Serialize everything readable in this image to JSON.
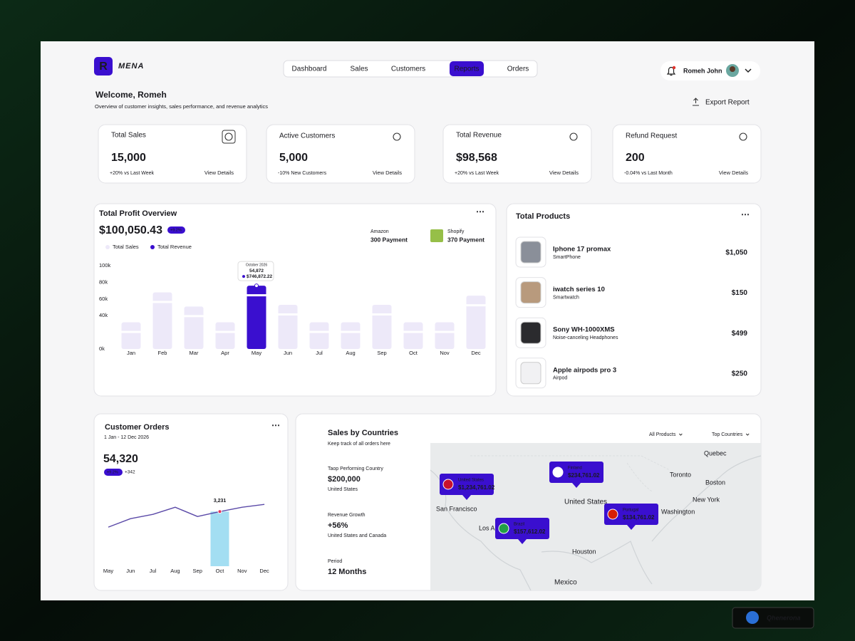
{
  "header": {
    "logo": "R",
    "brand": "MENA",
    "nav": [
      "Dashboard",
      "Sales",
      "Customers",
      "Reports",
      "Orders"
    ],
    "nav_active": 3,
    "user": "Romeh John"
  },
  "welcome": {
    "title": "Welcome, Romeh",
    "subtitle": "Overview of customer insights, sales performance, and revenue analytics",
    "export": "Export Report"
  },
  "stats": [
    {
      "label": "Total Sales",
      "value": "15,000",
      "change": "+20%",
      "change_text": "vs Last Week",
      "link": "View Details"
    },
    {
      "label": "Active Customers",
      "value": "5,000",
      "change": "-10%",
      "change_text": "New Customers",
      "link": "View Details"
    },
    {
      "label": "Total Revenue",
      "value": "$98,568",
      "change": "+20%",
      "change_text": "vs Last Week",
      "link": "View Details"
    },
    {
      "label": "Refund  Request",
      "value": "200",
      "change": "-0.04%",
      "change_text": "vs Last Month",
      "link": "View Details"
    }
  ],
  "profit": {
    "title": "Total Profit Overview",
    "total": "$100,050.43",
    "badge": "+9.2%",
    "legend": [
      "Total Sales",
      "Total Revenue"
    ],
    "payments": [
      {
        "name": "Amazon",
        "count": "300 Payment"
      },
      {
        "name": "Shopify",
        "count": "370 Payment"
      }
    ],
    "chart": {
      "type": "bar",
      "categories": [
        "Jan",
        "Feb",
        "Mar",
        "Apr",
        "May",
        "Jun",
        "Jul",
        "Aug",
        "Sep",
        "Oct",
        "Nov",
        "Dec"
      ],
      "values": [
        32000,
        68000,
        51000,
        32000,
        76000,
        53000,
        32000,
        32000,
        53000,
        32000,
        32000,
        64000
      ],
      "color": "#ede9f9",
      "highlight_color": "#3a0fcf",
      "highlight": 4,
      "ylim": [
        0,
        100000
      ],
      "yticks": [
        {
          "value": 0,
          "label": "0k"
        },
        {
          "value": 40000,
          "label": "40k"
        },
        {
          "value": 60000,
          "label": "60k"
        },
        {
          "value": 80000,
          "label": "80k"
        },
        {
          "value": 100000,
          "label": "100k"
        }
      ],
      "tooltip": {
        "title": "October 2026",
        "value": "54,872",
        "amount": "$746,872.22"
      }
    }
  },
  "products": {
    "title": "Total Products",
    "items": [
      {
        "name": "Iphone 17 promax",
        "category": "SmartPhone",
        "price": "$1,050"
      },
      {
        "name": "iwatch series 10",
        "category": "Smartwatch",
        "price": "$150"
      },
      {
        "name": "Sony WH-1000XMS",
        "category": "Noise-canceling Headphones",
        "price": "$499"
      },
      {
        "name": "Apple airpods pro 3",
        "category": "Airpod",
        "price": "$250"
      }
    ]
  },
  "orders": {
    "title": "Customer Orders",
    "date": "1 Jan - 12 Dec 2026",
    "total": "54,320",
    "badge": "+9.2%",
    "extra": "+342",
    "chart": {
      "type": "line",
      "categories": [
        "May",
        "Jun",
        "Jul",
        "Aug",
        "Sep",
        "Oct",
        "Nov",
        "Dec"
      ],
      "values": [
        2310,
        2814,
        3066,
        3486,
        2940,
        3231,
        3486,
        3654
      ],
      "ylim": [
        0,
        4000
      ],
      "color": "#5b4aa8",
      "bar_color": "#a3def2",
      "highlight": {
        "index": 5,
        "label": "3,231"
      }
    }
  },
  "countries": {
    "title": "Sales by Countries",
    "subtitle": "Keep track of all orders here",
    "stats": [
      {
        "label": "Taop Performing Country",
        "value": "$200,000",
        "note": "United States"
      },
      {
        "label": "Revenue Growth",
        "value": "+56%",
        "note": "United States and Canada"
      },
      {
        "label": "Period",
        "value": "12 Months"
      }
    ],
    "filters": [
      "All Products",
      "Top Countries"
    ],
    "map_labels": [
      "Quebec",
      "Toronto",
      "Boston",
      "New York",
      "Washington",
      "United States",
      "San Francisco",
      "Los Angeles",
      "Houston",
      "Mexico"
    ],
    "pins": [
      {
        "country": "United States",
        "amount": "$1,234,761.02"
      },
      {
        "country": "Finland",
        "amount": "$234,761.02"
      },
      {
        "country": "Brazil",
        "amount": "$157,612.02"
      },
      {
        "country": "Portugal",
        "amount": "$134,761.02"
      }
    ]
  },
  "credit": "Qhenerona"
}
